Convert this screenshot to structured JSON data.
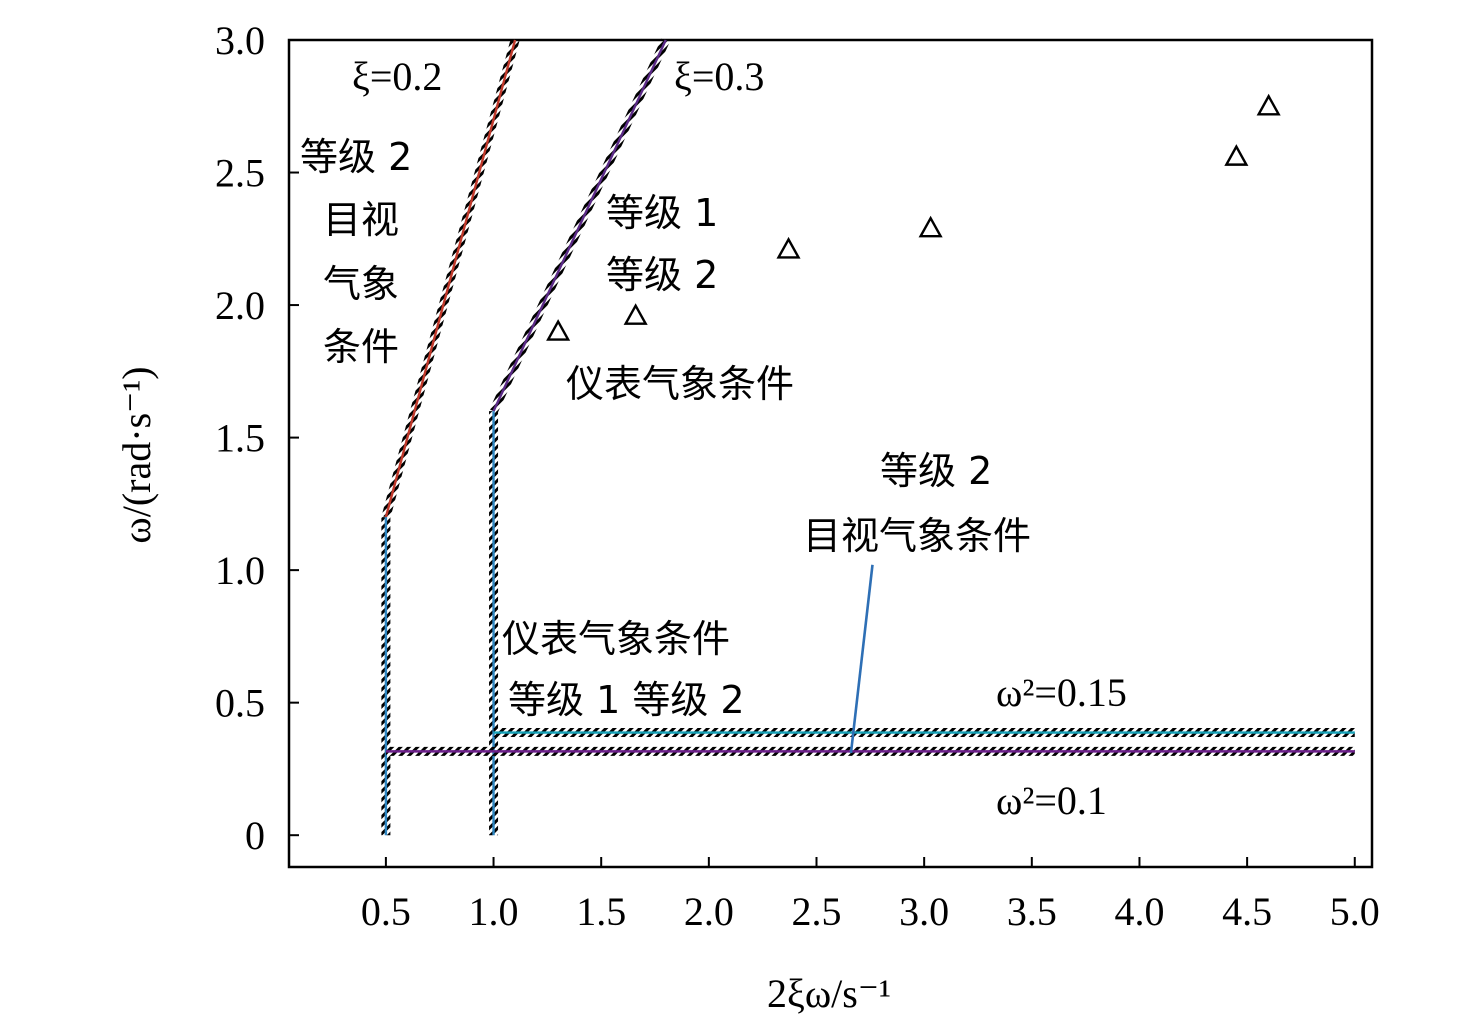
{
  "chart_data": {
    "type": "line",
    "xlabel": "2ξω/s⁻¹",
    "ylabel": "ω/(rad·s⁻¹)",
    "xlim": [
      0.05,
      5.08
    ],
    "ylim": [
      -0.12,
      3.0
    ],
    "x_ticks": [
      "0.5",
      "1.0",
      "1.5",
      "2.0",
      "2.5",
      "3.0",
      "3.5",
      "4.0",
      "4.5",
      "5.0"
    ],
    "x_tick_values": [
      0.5,
      1.0,
      1.5,
      2.0,
      2.5,
      3.0,
      3.5,
      4.0,
      4.5,
      5.0
    ],
    "y_ticks": [
      "0",
      "0.5",
      "1.0",
      "1.5",
      "2.0",
      "2.5",
      "3.0"
    ],
    "y_tick_values": [
      0,
      0.5,
      1.0,
      1.5,
      2.0,
      2.5,
      3.0
    ],
    "grid": false,
    "boundaries": [
      {
        "name": "ξ=0.2",
        "color": "#c0392b",
        "x": [
          0.5,
          1.1
        ],
        "y": [
          1.2,
          3.0
        ]
      },
      {
        "name": "ξ=0.3",
        "color": "#5b2a86",
        "x": [
          1.0,
          1.8
        ],
        "y": [
          1.6,
          3.0
        ]
      },
      {
        "name": "",
        "color": "#2e86c1",
        "x": [
          0.5,
          0.5
        ],
        "y": [
          0.0,
          1.2
        ]
      },
      {
        "name": "",
        "color": "#2e86c1",
        "x": [
          1.0,
          1.0
        ],
        "y": [
          0.0,
          1.6
        ]
      },
      {
        "name": "ω²=0.15",
        "color": "#17a2b8",
        "x": [
          1.0,
          5.0
        ],
        "y": [
          0.3873,
          0.3873
        ]
      },
      {
        "name": "ω²=0.1",
        "color": "#6c1f8a",
        "x": [
          0.5,
          5.0
        ],
        "y": [
          0.3162,
          0.3162
        ]
      }
    ],
    "pointer_line": {
      "color": "#2e6fb5",
      "x": [
        2.66,
        2.76
      ],
      "y": [
        0.31,
        1.02
      ]
    },
    "points": {
      "marker": "triangle",
      "x": [
        1.3,
        1.66,
        2.37,
        3.03,
        4.45,
        4.6
      ],
      "y": [
        1.9,
        1.96,
        2.21,
        2.29,
        2.56,
        2.75
      ]
    },
    "annotations": {
      "xi02": "ξ=0.2",
      "xi03": "ξ=0.3",
      "omega015": "ω²=0.15",
      "omega01": "ω²=0.1",
      "region_left": [
        "等级 2",
        "目视",
        "气象",
        "条件"
      ],
      "region_upper": [
        "等级 1",
        "等级 2"
      ],
      "instrument_upper": "仪表气象条件",
      "visual_right": [
        "等级 2",
        "目视气象条件"
      ],
      "instrument_lower": [
        "仪表气象条件",
        "等级 1 等级 2"
      ]
    }
  }
}
